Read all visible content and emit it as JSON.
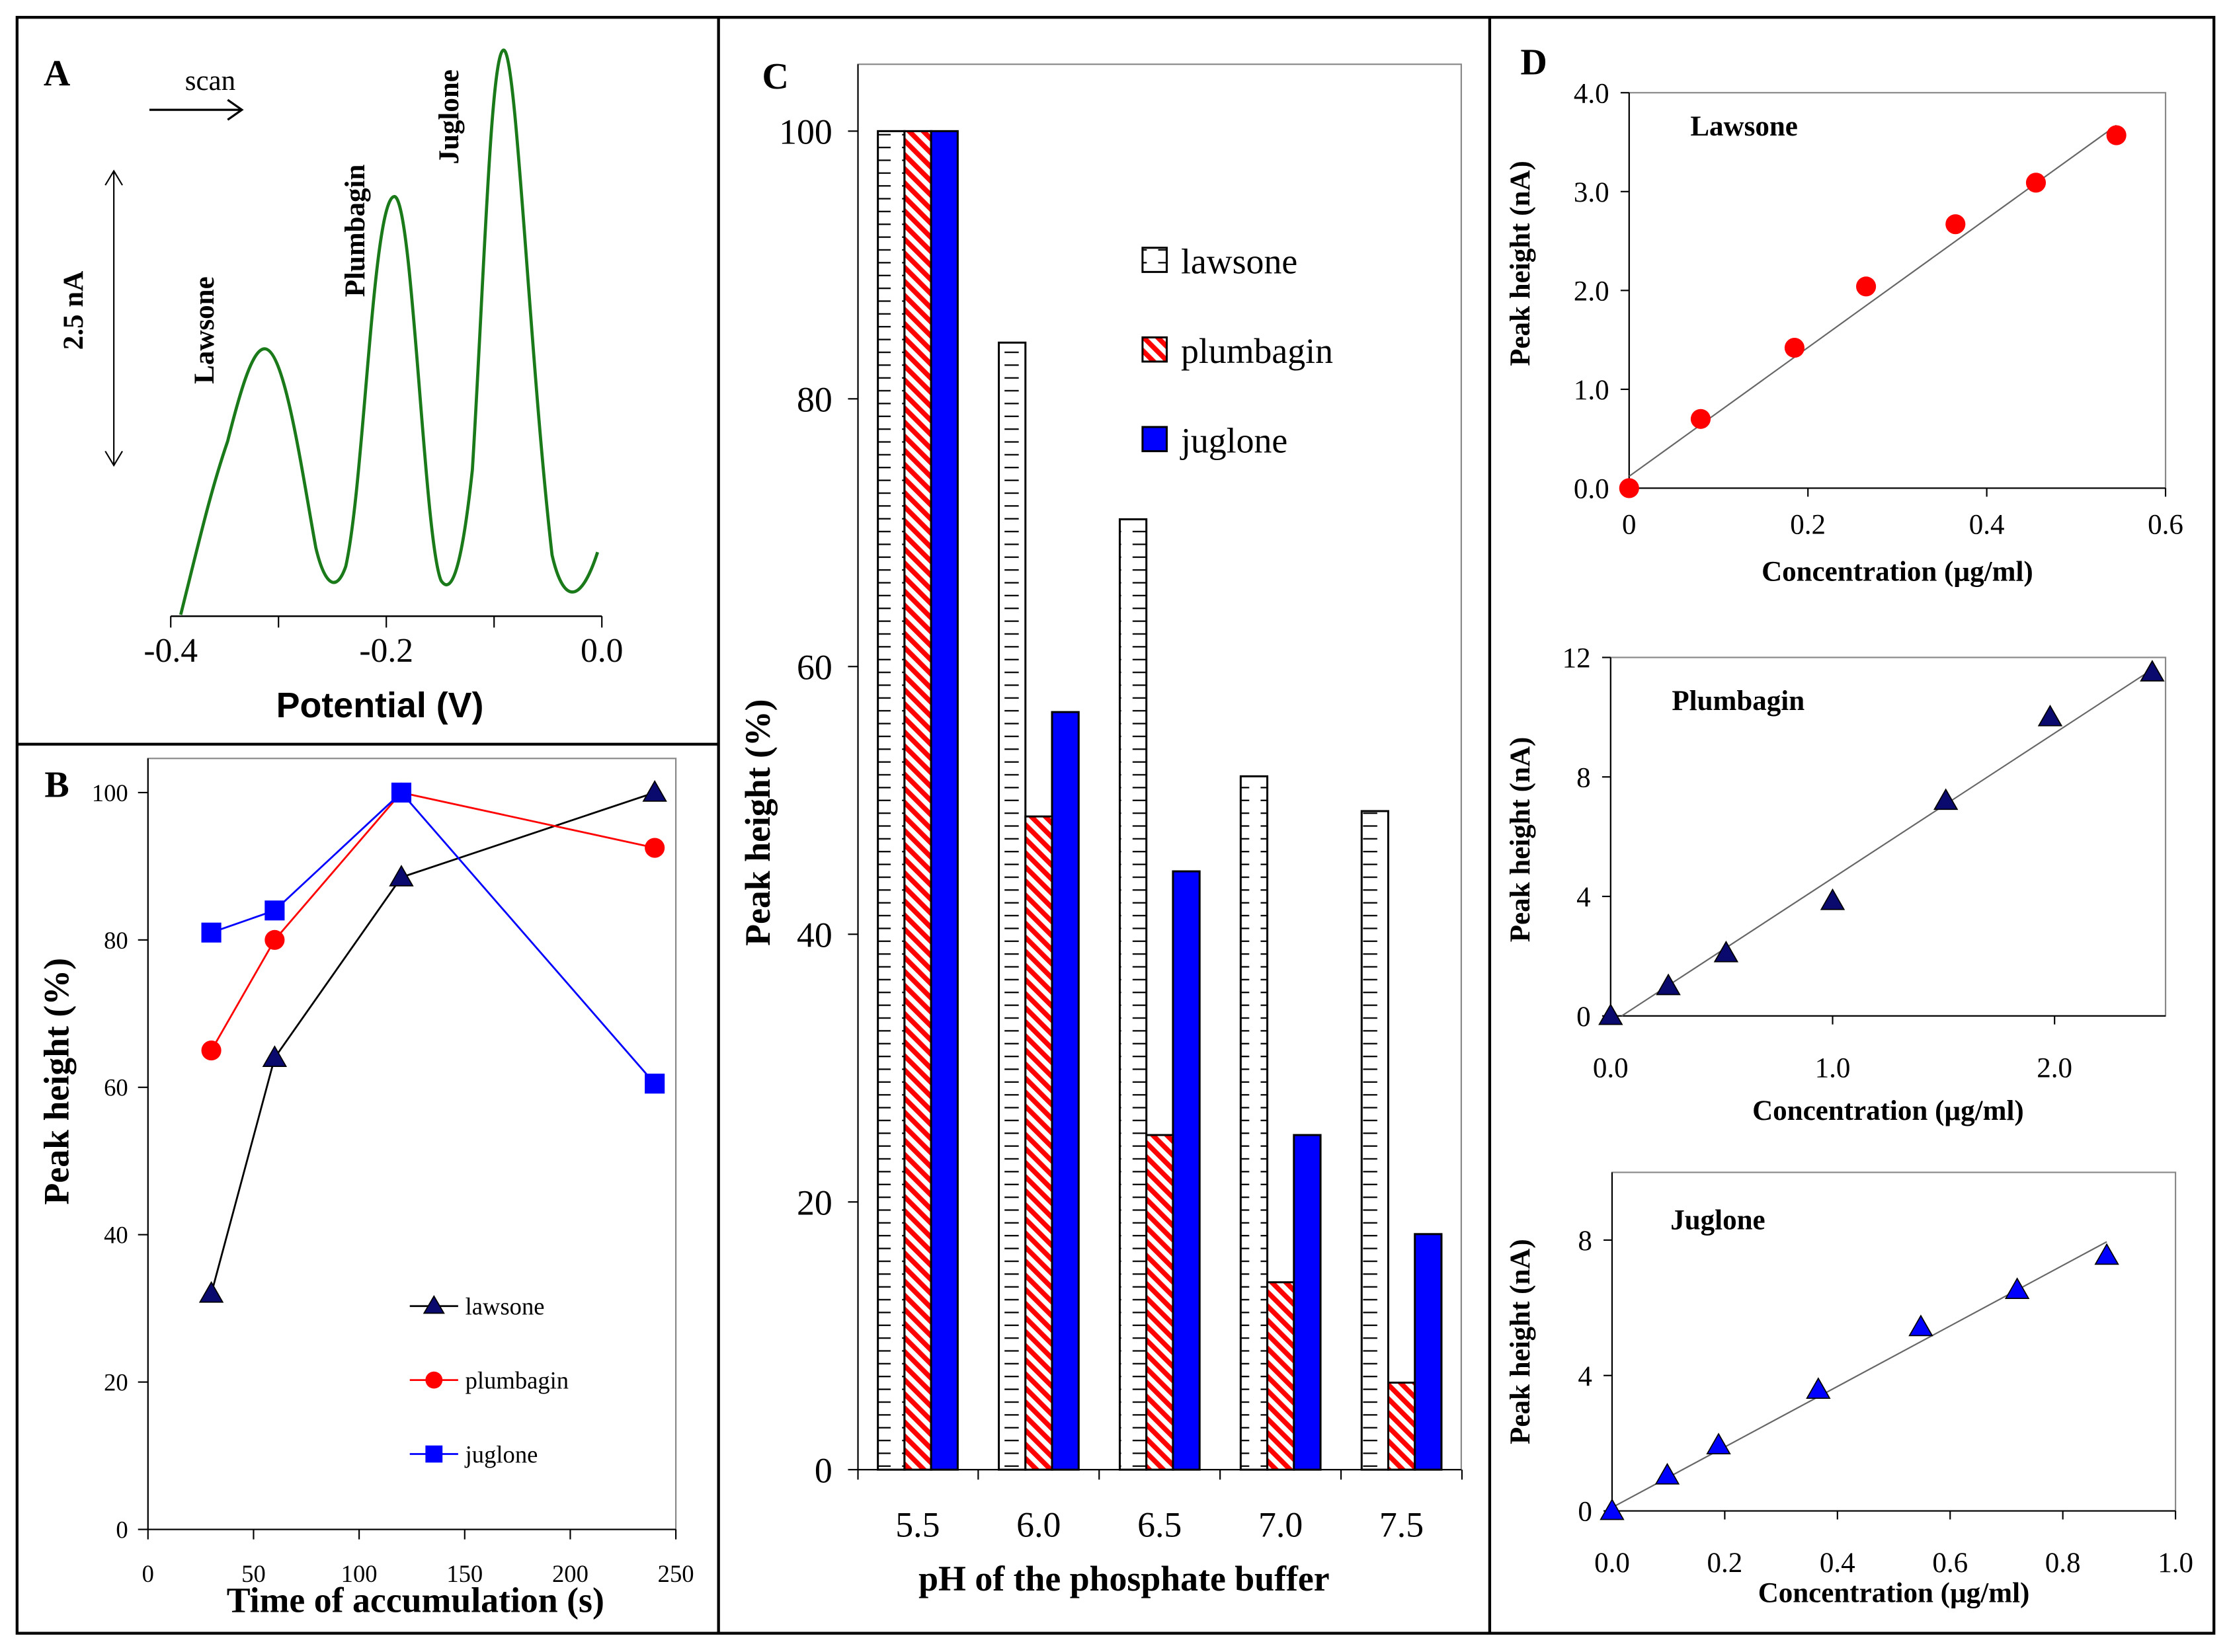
{
  "chart_data": [
    {
      "panel": "A",
      "type": "line",
      "xlabel": "Potential (V)",
      "xticks": [
        "-0.4",
        "-0.2",
        "0.0"
      ],
      "xlim": [
        -0.4,
        0.0
      ],
      "annotations": {
        "scan": "scan",
        "scale": "2.5 nA",
        "peaks": [
          "Lawsone",
          "Plumbagin",
          "Juglone"
        ]
      },
      "peak_potentials": [
        -0.31,
        -0.19,
        -0.09
      ],
      "line_color": "#1a7a1a"
    },
    {
      "panel": "B",
      "type": "line",
      "xlabel": "Time of accumulation (s)",
      "ylabel": "Peak height (%)",
      "xlim": [
        0,
        250
      ],
      "ylim": [
        0,
        100
      ],
      "xticks": [
        "0",
        "50",
        "100",
        "150",
        "200",
        "250"
      ],
      "yticks": [
        "0",
        "20",
        "40",
        "60",
        "80",
        "100"
      ],
      "x": [
        30,
        60,
        120,
        240
      ],
      "legend_position": "bottom-right",
      "series": [
        {
          "name": "lawsone",
          "values": [
            32,
            64,
            88.5,
            100
          ],
          "color": "#000000",
          "marker": "triangle",
          "marker_color": "#0a0a6e"
        },
        {
          "name": "plumbagin",
          "values": [
            65,
            80,
            100,
            92.5
          ],
          "color": "#ff0000",
          "marker": "circle",
          "marker_color": "#ff0000"
        },
        {
          "name": "juglone",
          "values": [
            81,
            84,
            100,
            60.5
          ],
          "color": "#0000ff",
          "marker": "square",
          "marker_color": "#0000ff"
        }
      ]
    },
    {
      "panel": "C",
      "type": "bar",
      "xlabel": "pH of the phosphate buffer",
      "ylabel": "Peak height (%)",
      "ylim": [
        0,
        100
      ],
      "yticks": [
        "0",
        "20",
        "40",
        "60",
        "80",
        "100"
      ],
      "categories": [
        "5.5",
        "6.0",
        "6.5",
        "7.0",
        "7.5"
      ],
      "legend_position": "top-right",
      "series": [
        {
          "name": "lawsone",
          "values": [
            100,
            84.2,
            71,
            51.8,
            49.2
          ],
          "pattern": "dashes"
        },
        {
          "name": "plumbagin",
          "values": [
            100,
            48.8,
            25,
            14,
            6.5
          ],
          "pattern": "red-stripes"
        },
        {
          "name": "juglone",
          "values": [
            100,
            56.6,
            44.7,
            25,
            17.6
          ],
          "pattern": "solid-blue"
        }
      ]
    },
    {
      "panel": "D",
      "type": "scatter",
      "title": "Lawsone",
      "xlabel": "Concentration (µg/ml)",
      "ylabel": "Peak height (nA)",
      "xlim": [
        0,
        0.6
      ],
      "ylim": [
        0,
        4
      ],
      "xticks": [
        "0",
        "0.2",
        "0.4",
        "0.6"
      ],
      "xtick_values": [
        0,
        0.2,
        0.4,
        0.6
      ],
      "yticks": [
        "0.0",
        "1.0",
        "2.0",
        "3.0",
        "4.0"
      ],
      "ytick_values": [
        0,
        1,
        2,
        3,
        4
      ],
      "x": [
        0,
        0.08,
        0.185,
        0.265,
        0.365,
        0.455,
        0.545
      ],
      "y": [
        0,
        0.7,
        1.42,
        2.04,
        2.67,
        3.09,
        3.57
      ],
      "fit": [
        [
          0,
          0.12
        ],
        [
          0.545,
          3.67
        ]
      ],
      "marker": "circle",
      "color": "#ff0000"
    },
    {
      "panel": "D",
      "type": "scatter",
      "title": "Plumbagin",
      "xlabel": "Concentration (µg/ml)",
      "ylabel": "Peak height (nA)",
      "xlim": [
        0,
        2.5
      ],
      "ylim": [
        0,
        12
      ],
      "xticks": [
        "0.0",
        "1.0",
        "2.0"
      ],
      "xtick_values": [
        0,
        1,
        2
      ],
      "yticks": [
        "0",
        "4",
        "8",
        "12"
      ],
      "ytick_values": [
        0,
        4,
        8,
        12
      ],
      "x": [
        0,
        0.26,
        0.52,
        1.0,
        1.51,
        1.98,
        2.44
      ],
      "y": [
        0,
        1.0,
        2.1,
        3.85,
        7.2,
        10.0,
        11.5
      ],
      "fit": [
        [
          0.05,
          0
        ],
        [
          2.44,
          11.6
        ]
      ],
      "marker": "triangle",
      "color": "#0a0a6e"
    },
    {
      "panel": "D",
      "type": "scatter",
      "title": "Juglone",
      "xlabel": "Concentration (µg/ml)",
      "ylabel": "Peak height (nA)",
      "xlim": [
        0,
        1.0
      ],
      "ylim": [
        0,
        10
      ],
      "xticks": [
        "0.0",
        "0.2",
        "0.4",
        "0.6",
        "0.8",
        "1.0"
      ],
      "xtick_values": [
        0,
        0.2,
        0.4,
        0.6,
        0.8,
        1.0
      ],
      "yticks": [
        "0",
        "4",
        "8"
      ],
      "ytick_values": [
        0,
        4,
        8
      ],
      "x": [
        0,
        0.098,
        0.189,
        0.366,
        0.548,
        0.719,
        0.878
      ],
      "y": [
        0,
        1.05,
        1.94,
        3.58,
        5.43,
        6.53,
        7.54
      ],
      "fit": [
        [
          0,
          0.1
        ],
        [
          0.878,
          7.95
        ]
      ],
      "marker": "triangle",
      "color": "#0000ff"
    }
  ],
  "panel_labels": [
    "A",
    "B",
    "C",
    "D"
  ]
}
